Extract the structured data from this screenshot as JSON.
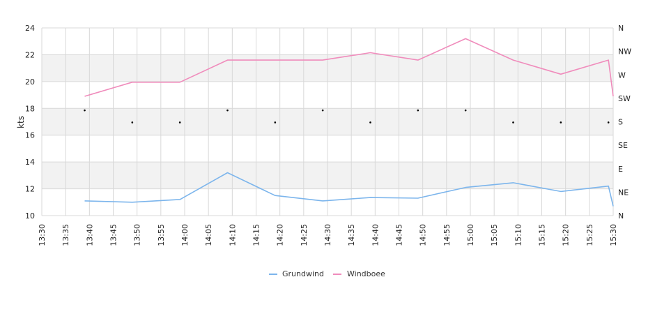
{
  "chart_data": {
    "type": "line",
    "ylabel": "kts",
    "ylim": [
      10,
      24
    ],
    "y_ticks": [
      "10",
      "12",
      "14",
      "16",
      "18",
      "20",
      "22",
      "24"
    ],
    "x_ticks": [
      "13:30",
      "13:35",
      "13:40",
      "13:45",
      "13:50",
      "13:55",
      "14:00",
      "14:05",
      "14:10",
      "14:15",
      "14:20",
      "14:25",
      "14:30",
      "14:35",
      "14:40",
      "14:45",
      "14:50",
      "14:55",
      "15:00",
      "15:05",
      "15:10",
      "15:15",
      "15:20",
      "15:25",
      "15:30"
    ],
    "x_start_minutes": 810,
    "x_end_minutes": 930,
    "direction_ticks": [
      "N",
      "NW",
      "W",
      "SW",
      "S",
      "SE",
      "E",
      "NE",
      "N"
    ],
    "series": [
      {
        "name": "Grundwind",
        "color": "#7cb5ec",
        "points": [
          {
            "x": "13:39",
            "y": 11.1
          },
          {
            "x": "13:49",
            "y": 11.0
          },
          {
            "x": "13:59",
            "y": 11.2
          },
          {
            "x": "14:09",
            "y": 13.2
          },
          {
            "x": "14:19",
            "y": 11.5
          },
          {
            "x": "14:29",
            "y": 11.1
          },
          {
            "x": "14:39",
            "y": 11.35
          },
          {
            "x": "14:49",
            "y": 11.3
          },
          {
            "x": "14:59",
            "y": 12.1
          },
          {
            "x": "15:09",
            "y": 12.45
          },
          {
            "x": "15:19",
            "y": 11.8
          },
          {
            "x": "15:29",
            "y": 12.2
          },
          {
            "x": "15:30",
            "y": 10.7
          }
        ]
      },
      {
        "name": "Windboee",
        "color": "#f08cbc",
        "points": [
          {
            "x": "13:39",
            "y": 18.9
          },
          {
            "x": "13:49",
            "y": 19.95
          },
          {
            "x": "13:59",
            "y": 19.95
          },
          {
            "x": "14:09",
            "y": 21.6
          },
          {
            "x": "14:19",
            "y": 21.6
          },
          {
            "x": "14:29",
            "y": 21.6
          },
          {
            "x": "14:39",
            "y": 22.15
          },
          {
            "x": "14:49",
            "y": 21.6
          },
          {
            "x": "14:59",
            "y": 23.2
          },
          {
            "x": "15:09",
            "y": 21.6
          },
          {
            "x": "15:19",
            "y": 20.55
          },
          {
            "x": "15:29",
            "y": 21.6
          },
          {
            "x": "15:30",
            "y": 18.9
          }
        ]
      }
    ],
    "direction_points": [
      {
        "x": "13:39",
        "dir": "SSW"
      },
      {
        "x": "13:49",
        "dir": "S"
      },
      {
        "x": "13:59",
        "dir": "S"
      },
      {
        "x": "14:09",
        "dir": "SSW"
      },
      {
        "x": "14:19",
        "dir": "S"
      },
      {
        "x": "14:29",
        "dir": "SSW"
      },
      {
        "x": "14:39",
        "dir": "S"
      },
      {
        "x": "14:49",
        "dir": "SSW"
      },
      {
        "x": "14:59",
        "dir": "SSW"
      },
      {
        "x": "15:09",
        "dir": "S"
      },
      {
        "x": "15:19",
        "dir": "S"
      },
      {
        "x": "15:29",
        "dir": "S"
      }
    ],
    "direction_values": {
      "SSW": 17.85,
      "S": 16.95
    },
    "grid": true,
    "band_fill": "#f2f2f2",
    "gridline_color": "#d8d8d8",
    "legend_placement": "bottom-center"
  }
}
